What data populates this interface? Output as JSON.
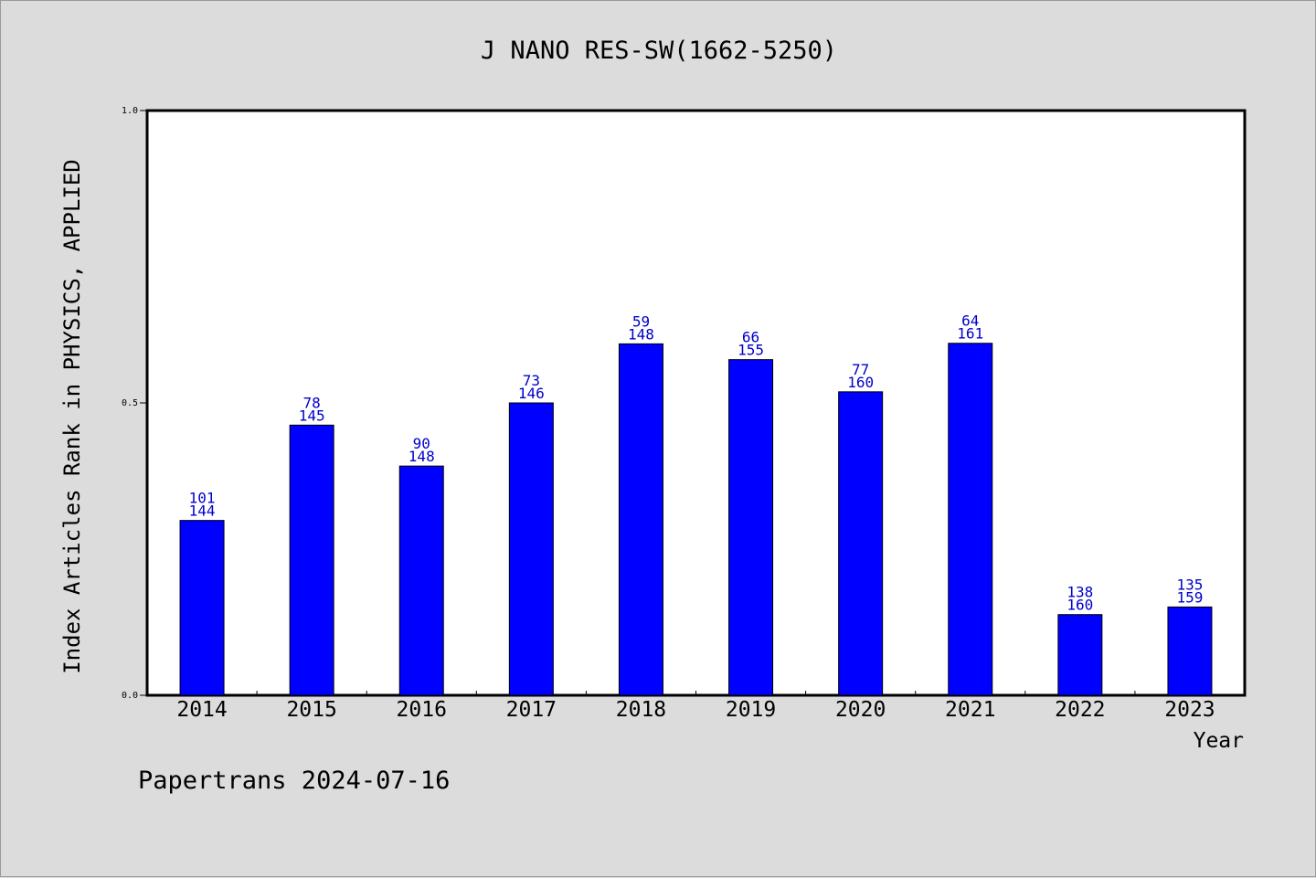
{
  "chart_data": {
    "type": "bar",
    "title": "J NANO RES-SW(1662-5250)",
    "ylabel": "Index Articles Rank in PHYSICS, APPLIED",
    "xlabel": "Year",
    "ylim": [
      0,
      1.0
    ],
    "yticks": [
      "0.0",
      "0.5",
      "1.0"
    ],
    "ytick_values": [
      0.0,
      0.5,
      1.0
    ],
    "categories": [
      "2014",
      "2015",
      "2016",
      "2017",
      "2018",
      "2019",
      "2020",
      "2021",
      "2022",
      "2023"
    ],
    "values": [
      0.299,
      0.462,
      0.392,
      0.5,
      0.601,
      0.574,
      0.519,
      0.602,
      0.138,
      0.151
    ],
    "labels_top": [
      "101",
      "78",
      "90",
      "73",
      "59",
      "66",
      "77",
      "64",
      "138",
      "135"
    ],
    "labels_bottom": [
      "144",
      "145",
      "148",
      "146",
      "148",
      "155",
      "160",
      "161",
      "160",
      "159"
    ],
    "bar_color": "#0000ff",
    "label_color": "#0000cc",
    "grid": false
  },
  "footer": "Papertrans 2024-07-16"
}
